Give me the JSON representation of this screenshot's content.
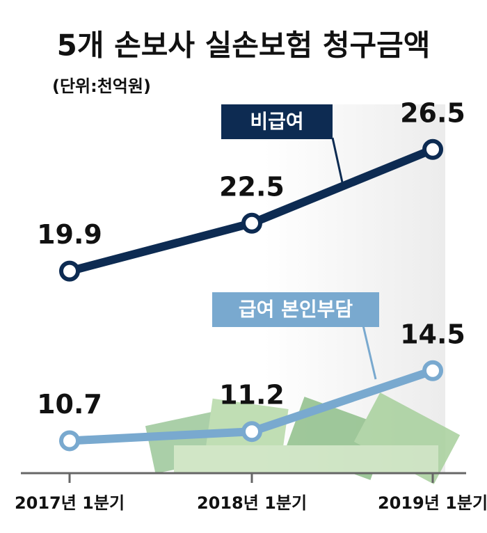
{
  "chart_data": {
    "type": "line",
    "title": "5개 손보사 실손보험 청구금액",
    "subtitle": "(단위:천억원)",
    "categories": [
      "2017년 1분기",
      "2018년 1분기",
      "2019년 1분기"
    ],
    "series": [
      {
        "name": "비급여",
        "color": "#0d2b52",
        "values": [
          19.9,
          22.5,
          26.5
        ]
      },
      {
        "name": "급여 본인부담",
        "color": "#79a9cf",
        "values": [
          10.7,
          11.2,
          14.5
        ]
      }
    ]
  }
}
